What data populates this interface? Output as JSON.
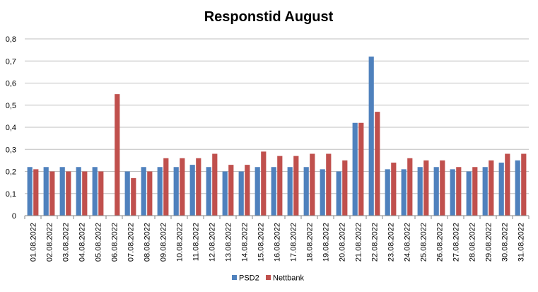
{
  "chart_data": {
    "type": "bar",
    "title": "Responstid August",
    "xlabel": "",
    "ylabel": "",
    "ylim": [
      0,
      0.8
    ],
    "y_ticks": [
      "0",
      "0,1",
      "0,2",
      "0,3",
      "0,4",
      "0,5",
      "0,6",
      "0,7",
      "0,8"
    ],
    "grid": true,
    "legend_position": "bottom",
    "categories": [
      "01.08.2022",
      "02.08.2022",
      "03.08.2022",
      "04.08.2022",
      "05.08.2022",
      "06.08.2022",
      "07.08.2022",
      "08.08.2022",
      "09.08.2022",
      "10.08.2022",
      "11.08.2022",
      "12.08.2022",
      "13.08.2022",
      "14.08.2022",
      "15.08.2022",
      "16.08.2022",
      "17.08.2022",
      "18.08.2022",
      "19.08.2022",
      "20.08.2022",
      "21.08.2022",
      "22.08.2022",
      "23.08.2022",
      "24.08.2022",
      "25.08.2022",
      "26.08.2022",
      "27.08.2022",
      "28.08.2022",
      "29.08.2022",
      "30.08.2022",
      "31.08.2022"
    ],
    "series": [
      {
        "name": "PSD2",
        "color": "#4f81bd",
        "values": [
          0.22,
          0.22,
          0.22,
          0.22,
          0.22,
          0,
          0.2,
          0.22,
          0.22,
          0.22,
          0.23,
          0.22,
          0.2,
          0.2,
          0.22,
          0.22,
          0.22,
          0.22,
          0.21,
          0.2,
          0.42,
          0.72,
          0.21,
          0.21,
          0.22,
          0.22,
          0.21,
          0.2,
          0.22,
          0.24,
          0.25
        ]
      },
      {
        "name": "Nettbank",
        "color": "#c0504d",
        "values": [
          0.21,
          0.2,
          0.2,
          0.2,
          0.2,
          0.55,
          0.17,
          0.2,
          0.26,
          0.26,
          0.26,
          0.28,
          0.23,
          0.23,
          0.29,
          0.27,
          0.27,
          0.28,
          0.28,
          0.25,
          0.42,
          0.47,
          0.24,
          0.26,
          0.25,
          0.25,
          0.22,
          0.22,
          0.25,
          0.28,
          0.28
        ]
      }
    ]
  }
}
